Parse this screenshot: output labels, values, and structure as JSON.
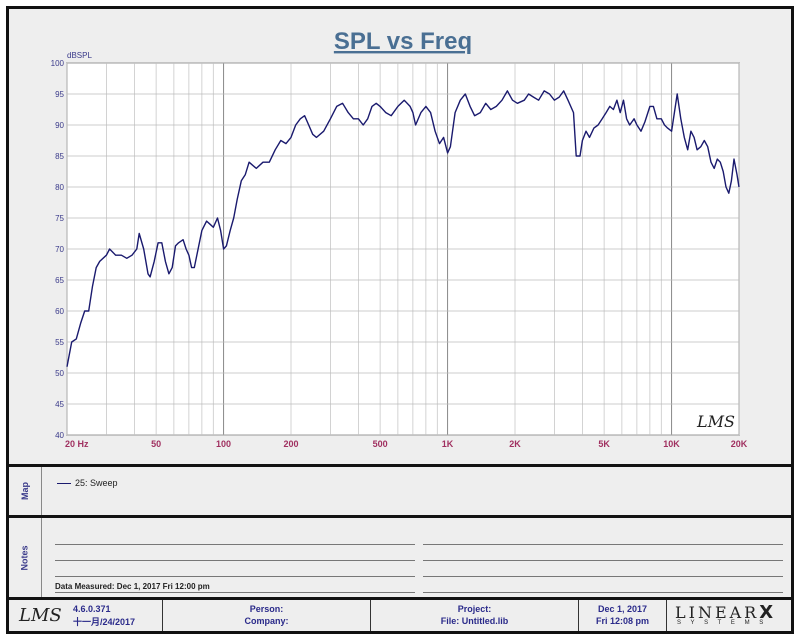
{
  "chart_data": {
    "type": "line",
    "title": "SPL vs Freq",
    "ylabel": "dBSPL",
    "xscale": "log",
    "xlim": [
      20,
      20000
    ],
    "ylim": [
      40,
      100
    ],
    "yticks": [
      100,
      95,
      90,
      85,
      80,
      75,
      70,
      65,
      60,
      55,
      50,
      45,
      40
    ],
    "xticks": [
      {
        "value": 20,
        "label": "20  Hz"
      },
      {
        "value": 50,
        "label": "50"
      },
      {
        "value": 100,
        "label": "100"
      },
      {
        "value": 200,
        "label": "200"
      },
      {
        "value": 500,
        "label": "500"
      },
      {
        "value": 1000,
        "label": "1K"
      },
      {
        "value": 2000,
        "label": "2K"
      },
      {
        "value": 5000,
        "label": "5K"
      },
      {
        "value": 10000,
        "label": "10K"
      },
      {
        "value": 20000,
        "label": "20K"
      }
    ],
    "grid": true,
    "series": [
      {
        "name": "25: Sweep",
        "color": "#1a1a6e",
        "points": [
          [
            20,
            51
          ],
          [
            21,
            55
          ],
          [
            22,
            55.5
          ],
          [
            23,
            58
          ],
          [
            24,
            60
          ],
          [
            25,
            60
          ],
          [
            26,
            64
          ],
          [
            27,
            67
          ],
          [
            28,
            68
          ],
          [
            30,
            69
          ],
          [
            31,
            70
          ],
          [
            33,
            69
          ],
          [
            35,
            69
          ],
          [
            37,
            68.5
          ],
          [
            39,
            69
          ],
          [
            41,
            70
          ],
          [
            42,
            72.5
          ],
          [
            44,
            70
          ],
          [
            46,
            66
          ],
          [
            47,
            65.5
          ],
          [
            49,
            68
          ],
          [
            51,
            71
          ],
          [
            53,
            71
          ],
          [
            55,
            68
          ],
          [
            57,
            66
          ],
          [
            59,
            67
          ],
          [
            61,
            70.5
          ],
          [
            63,
            71
          ],
          [
            66,
            71.5
          ],
          [
            68,
            70
          ],
          [
            70,
            69
          ],
          [
            72,
            67
          ],
          [
            74,
            67
          ],
          [
            77,
            70
          ],
          [
            80,
            73
          ],
          [
            84,
            74.5
          ],
          [
            87,
            74
          ],
          [
            90,
            73.5
          ],
          [
            94,
            75
          ],
          [
            97,
            73
          ],
          [
            100,
            70
          ],
          [
            103,
            70.5
          ],
          [
            107,
            73
          ],
          [
            111,
            75
          ],
          [
            115,
            78
          ],
          [
            120,
            81
          ],
          [
            125,
            82
          ],
          [
            130,
            84
          ],
          [
            140,
            83
          ],
          [
            150,
            84
          ],
          [
            160,
            84
          ],
          [
            170,
            86
          ],
          [
            180,
            87.5
          ],
          [
            190,
            87
          ],
          [
            200,
            88
          ],
          [
            210,
            90
          ],
          [
            220,
            91
          ],
          [
            230,
            91.5
          ],
          [
            240,
            90
          ],
          [
            250,
            88.5
          ],
          [
            260,
            88
          ],
          [
            280,
            89
          ],
          [
            300,
            91
          ],
          [
            320,
            93
          ],
          [
            340,
            93.5
          ],
          [
            360,
            92
          ],
          [
            380,
            91
          ],
          [
            400,
            91
          ],
          [
            420,
            90
          ],
          [
            440,
            91
          ],
          [
            460,
            93
          ],
          [
            480,
            93.5
          ],
          [
            500,
            93
          ],
          [
            530,
            92
          ],
          [
            560,
            91.5
          ],
          [
            600,
            93
          ],
          [
            640,
            94
          ],
          [
            680,
            93
          ],
          [
            700,
            92
          ],
          [
            720,
            90
          ],
          [
            760,
            92
          ],
          [
            800,
            93
          ],
          [
            840,
            92
          ],
          [
            880,
            89
          ],
          [
            920,
            87
          ],
          [
            960,
            88
          ],
          [
            1000,
            85.5
          ],
          [
            1030,
            86.5
          ],
          [
            1080,
            92
          ],
          [
            1140,
            94
          ],
          [
            1200,
            95
          ],
          [
            1260,
            93
          ],
          [
            1320,
            91.5
          ],
          [
            1400,
            92
          ],
          [
            1480,
            93.5
          ],
          [
            1560,
            92.5
          ],
          [
            1650,
            93
          ],
          [
            1750,
            94
          ],
          [
            1850,
            95.5
          ],
          [
            1950,
            94
          ],
          [
            2050,
            93.5
          ],
          [
            2200,
            94
          ],
          [
            2300,
            95
          ],
          [
            2420,
            94.5
          ],
          [
            2550,
            94
          ],
          [
            2700,
            95.5
          ],
          [
            2850,
            95
          ],
          [
            3000,
            94
          ],
          [
            3150,
            94.5
          ],
          [
            3300,
            95.5
          ],
          [
            3450,
            94
          ],
          [
            3650,
            92
          ],
          [
            3750,
            85
          ],
          [
            3900,
            85
          ],
          [
            4000,
            87.5
          ],
          [
            4150,
            89
          ],
          [
            4300,
            88
          ],
          [
            4500,
            89.5
          ],
          [
            4700,
            90
          ],
          [
            4900,
            91
          ],
          [
            5100,
            92
          ],
          [
            5300,
            93
          ],
          [
            5500,
            92.5
          ],
          [
            5700,
            94
          ],
          [
            5900,
            92
          ],
          [
            6100,
            94
          ],
          [
            6300,
            91
          ],
          [
            6500,
            90
          ],
          [
            6800,
            91
          ],
          [
            7000,
            90
          ],
          [
            7300,
            89
          ],
          [
            7600,
            90.5
          ],
          [
            8000,
            93
          ],
          [
            8300,
            93
          ],
          [
            8600,
            91
          ],
          [
            9000,
            91
          ],
          [
            9300,
            90
          ],
          [
            9600,
            89.5
          ],
          [
            10000,
            89
          ],
          [
            10300,
            92
          ],
          [
            10600,
            95
          ],
          [
            11000,
            91
          ],
          [
            11400,
            88
          ],
          [
            11800,
            86
          ],
          [
            12200,
            89
          ],
          [
            12600,
            88
          ],
          [
            13000,
            86
          ],
          [
            13500,
            86.5
          ],
          [
            14000,
            87.5
          ],
          [
            14500,
            86.5
          ],
          [
            15000,
            84
          ],
          [
            15500,
            83
          ],
          [
            16000,
            84.5
          ],
          [
            16500,
            84
          ],
          [
            17000,
            82.5
          ],
          [
            17500,
            80
          ],
          [
            18000,
            79
          ],
          [
            18500,
            81
          ],
          [
            19000,
            84.5
          ],
          [
            19600,
            82
          ],
          [
            20000,
            80
          ]
        ]
      }
    ]
  },
  "watermark": "LMS",
  "legend": {
    "panel_label": "Map",
    "entries": [
      {
        "text": "25: Sweep",
        "color": "#1a1a6e"
      }
    ]
  },
  "notes": {
    "panel_label": "Notes",
    "measured": "Data Measured: Dec  1, 2017  Fri 12:00 pm"
  },
  "footer": {
    "logo": "LMS",
    "version": "4.6.0.371",
    "version_date": "十一月/24/2017",
    "person_label": "Person:",
    "company_label": "Company:",
    "project_label": "Project:",
    "file_label": "File: Untitled.lib",
    "date": "Dec  1, 2017",
    "time": "Fri 12:08 pm",
    "brand_main": "LINEAR",
    "brand_x": "X",
    "brand_sub": "S Y S T E M S"
  }
}
